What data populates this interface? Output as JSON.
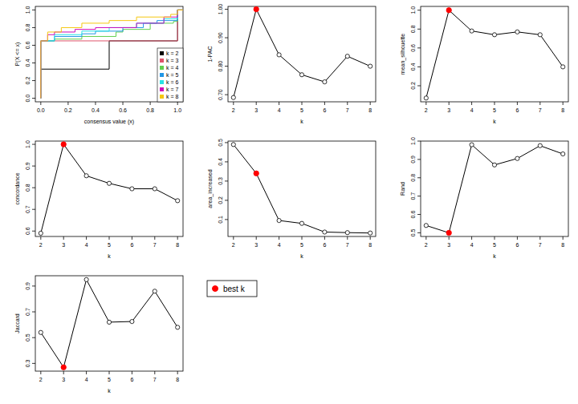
{
  "chart_data": [
    {
      "type": "line",
      "line_style": "step",
      "xlabel": "consensus value (x)",
      "ylabel": "P(X <= x)",
      "legend": "bottomright",
      "xlim": [
        -0.04,
        1.04
      ],
      "ylim": [
        -0.04,
        1.04
      ],
      "xticks": [
        {
          "value": 0,
          "label": "0.0"
        },
        {
          "value": 0.2,
          "label": "0.2"
        },
        {
          "value": 0.4,
          "label": "0.4"
        },
        {
          "value": 0.6,
          "label": "0.6"
        },
        {
          "value": 0.8,
          "label": "0.8"
        },
        {
          "value": 1,
          "label": "1.0"
        }
      ],
      "yticks": [
        {
          "value": 0,
          "label": "0.0"
        },
        {
          "value": 0.2,
          "label": "0.2"
        },
        {
          "value": 0.4,
          "label": "0.4"
        },
        {
          "value": 0.6,
          "label": "0.6"
        },
        {
          "value": 0.8,
          "label": "0.8"
        },
        {
          "value": 1,
          "label": "1.0"
        }
      ],
      "series": [
        {
          "name": "k = 2",
          "color": "#000000",
          "x": [
            0,
            0,
            0.5,
            1
          ],
          "values": [
            0,
            0.33,
            0.65,
            1
          ]
        },
        {
          "name": "k = 3",
          "color": "#DF536B",
          "x": [
            0,
            0,
            1
          ],
          "values": [
            0,
            0.65,
            1
          ]
        },
        {
          "name": "k = 4",
          "color": "#61D04F",
          "x": [
            0,
            0,
            0.1,
            0.3,
            0.55,
            0.6,
            0.8,
            0.97,
            1
          ],
          "values": [
            0,
            0.65,
            0.67,
            0.7,
            0.75,
            0.78,
            0.85,
            0.87,
            1
          ]
        },
        {
          "name": "k = 5",
          "color": "#2297E6",
          "x": [
            0,
            0,
            0.1,
            0.3,
            0.4,
            0.6,
            0.75,
            0.85,
            1
          ],
          "values": [
            0,
            0.65,
            0.7,
            0.73,
            0.76,
            0.8,
            0.85,
            0.88,
            1
          ]
        },
        {
          "name": "k = 6",
          "color": "#28E2E5",
          "x": [
            0,
            0,
            0.1,
            0.3,
            0.5,
            0.7,
            0.9,
            1
          ],
          "values": [
            0,
            0.65,
            0.72,
            0.76,
            0.8,
            0.85,
            0.9,
            1
          ]
        },
        {
          "name": "k = 7",
          "color": "#CD0BBC",
          "x": [
            0,
            0,
            0.05,
            0.1,
            0.25,
            0.4,
            0.7,
            0.9,
            1
          ],
          "values": [
            0,
            0.65,
            0.72,
            0.75,
            0.78,
            0.8,
            0.85,
            0.92,
            1
          ]
        },
        {
          "name": "k = 8",
          "color": "#F5C710",
          "x": [
            0,
            0,
            0.05,
            0.15,
            0.3,
            0.5,
            0.7,
            0.95,
            1
          ],
          "values": [
            0,
            0.65,
            0.75,
            0.8,
            0.85,
            0.88,
            0.92,
            0.95,
            1
          ]
        }
      ]
    },
    {
      "type": "line",
      "xlabel": "k",
      "ylabel": "1-PAC",
      "x": [
        2,
        3,
        4,
        5,
        6,
        7,
        8
      ],
      "xlim": [
        1.76,
        8.24
      ],
      "xticks": [
        2,
        3,
        4,
        5,
        6,
        7,
        8
      ],
      "ylim": [
        0.675,
        1.01
      ],
      "yticks": [
        {
          "value": 0.7,
          "label": "0.70"
        },
        {
          "value": 0.8,
          "label": "0.80"
        },
        {
          "value": 0.9,
          "label": "0.90"
        },
        {
          "value": 1,
          "label": "1.00"
        }
      ],
      "series": [
        {
          "color": "#000000",
          "marker": "circle",
          "colors": [
            "#000000",
            "#ff0000",
            "#000000",
            "#000000",
            "#000000",
            "#000000",
            "#000000"
          ],
          "values": [
            0.69,
            1.0,
            0.84,
            0.77,
            0.745,
            0.835,
            0.8
          ]
        }
      ]
    },
    {
      "type": "line",
      "xlabel": "k",
      "ylabel": "mean_silhouette",
      "x": [
        2,
        3,
        4,
        5,
        6,
        7,
        8
      ],
      "xlim": [
        1.76,
        8.24
      ],
      "xticks": [
        2,
        3,
        4,
        5,
        6,
        7,
        8
      ],
      "ylim": [
        0.03,
        1.04
      ],
      "yticks": [
        0.2,
        0.4,
        0.6,
        0.8,
        {
          "value": 1,
          "label": "1.0"
        }
      ],
      "series": [
        {
          "color": "#000000",
          "marker": "circle",
          "colors": [
            "#000000",
            "#ff0000",
            "#000000",
            "#000000",
            "#000000",
            "#000000",
            "#000000"
          ],
          "values": [
            0.07,
            1.0,
            0.78,
            0.74,
            0.77,
            0.74,
            0.4
          ]
        }
      ]
    },
    {
      "type": "line",
      "xlabel": "k",
      "ylabel": "concordance",
      "x": [
        2,
        3,
        4,
        5,
        6,
        7,
        8
      ],
      "xlim": [
        1.76,
        8.24
      ],
      "xticks": [
        2,
        3,
        4,
        5,
        6,
        7,
        8
      ],
      "ylim": [
        0.575,
        1.015
      ],
      "yticks": [
        0.6,
        0.7,
        0.8,
        0.9,
        {
          "value": 1,
          "label": "1.0"
        }
      ],
      "series": [
        {
          "color": "#000000",
          "marker": "circle",
          "colors": [
            "#000000",
            "#ff0000",
            "#000000",
            "#000000",
            "#000000",
            "#000000",
            "#000000"
          ],
          "values": [
            0.59,
            1.0,
            0.855,
            0.82,
            0.795,
            0.795,
            0.74
          ]
        }
      ]
    },
    {
      "type": "line",
      "xlabel": "k",
      "ylabel": "area_increased",
      "x": [
        2,
        3,
        4,
        5,
        6,
        7,
        8
      ],
      "xlim": [
        1.76,
        8.24
      ],
      "xticks": [
        2,
        3,
        4,
        5,
        6,
        7,
        8
      ],
      "ylim": [
        0.012,
        0.508
      ],
      "yticks": [
        0.1,
        0.2,
        0.3,
        0.4,
        0.5
      ],
      "series": [
        {
          "color": "#000000",
          "marker": "circle",
          "colors": [
            "#000000",
            "#ff0000",
            "#000000",
            "#000000",
            "#000000",
            "#000000",
            "#000000"
          ],
          "values": [
            0.49,
            0.34,
            0.095,
            0.08,
            0.035,
            0.032,
            0.03
          ]
        }
      ]
    },
    {
      "type": "line",
      "xlabel": "k",
      "ylabel": "Rand",
      "x": [
        2,
        3,
        4,
        5,
        6,
        7,
        8
      ],
      "xlim": [
        1.76,
        8.24
      ],
      "xticks": [
        2,
        3,
        4,
        5,
        6,
        7,
        8
      ],
      "ylim": [
        0.48,
        1.0
      ],
      "yticks": [
        0.5,
        0.6,
        0.7,
        0.8,
        0.9,
        {
          "value": 1,
          "label": "1.0"
        }
      ],
      "series": [
        {
          "color": "#000000",
          "marker": "circle",
          "colors": [
            "#000000",
            "#ff0000",
            "#000000",
            "#000000",
            "#000000",
            "#000000",
            "#000000"
          ],
          "values": [
            0.54,
            0.5,
            0.98,
            0.87,
            0.905,
            0.975,
            0.93
          ]
        }
      ]
    },
    {
      "type": "line",
      "xlabel": "k",
      "ylabel": "Jaccard",
      "x": [
        2,
        3,
        4,
        5,
        6,
        7,
        8
      ],
      "xlim": [
        1.76,
        8.24
      ],
      "xticks": [
        2,
        3,
        4,
        5,
        6,
        7,
        8
      ],
      "ylim": [
        0.24,
        0.98
      ],
      "yticks": [
        0.3,
        0.5,
        0.7,
        0.9
      ],
      "series": [
        {
          "color": "#000000",
          "marker": "circle",
          "colors": [
            "#000000",
            "#ff0000",
            "#000000",
            "#000000",
            "#000000",
            "#000000",
            "#000000"
          ],
          "values": [
            0.54,
            0.27,
            0.95,
            0.62,
            0.625,
            0.86,
            0.58
          ]
        }
      ]
    },
    {
      "type": "legend",
      "series": [
        {
          "name": "best k",
          "color": "#ff0000"
        }
      ]
    }
  ]
}
